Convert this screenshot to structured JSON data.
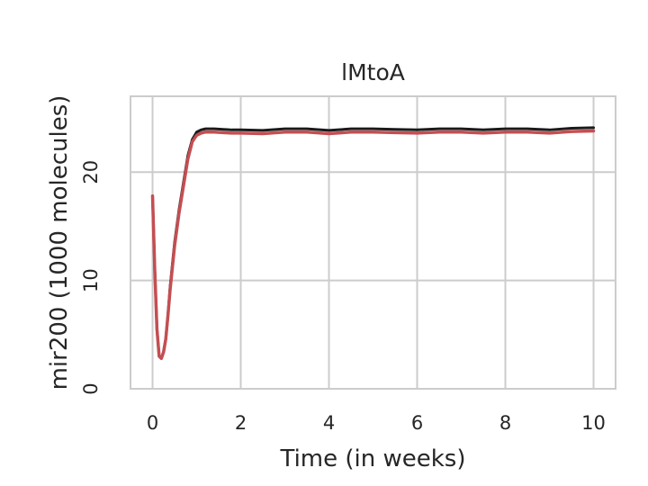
{
  "chart_data": {
    "type": "line",
    "title": "lMtoA",
    "xlabel": "Time (in weeks)",
    "ylabel": "mir200 (1000 molecules)",
    "xlim": [
      -0.5,
      10.5
    ],
    "ylim": [
      0,
      27
    ],
    "xticks": [
      0,
      2,
      4,
      6,
      8,
      10
    ],
    "yticks": [
      0,
      10,
      20
    ],
    "grid": true,
    "legend": "none",
    "series": [
      {
        "color": "#1a1a1a",
        "x": [
          0,
          0.05,
          0.1,
          0.15,
          0.2,
          0.25,
          0.3,
          0.35,
          0.4,
          0.5,
          0.6,
          0.7,
          0.8,
          0.9,
          1.0,
          1.1,
          1.2,
          1.4,
          1.6,
          1.8,
          2.0,
          2.5,
          3.0,
          3.5,
          4.0,
          4.5,
          5.0,
          5.5,
          6.0,
          6.5,
          7.0,
          7.5,
          8.0,
          8.5,
          9.0,
          9.5,
          10.0
        ],
        "y": [
          17.8,
          11.0,
          5.5,
          3.0,
          2.8,
          3.4,
          4.6,
          6.8,
          9.5,
          13.5,
          16.5,
          19.0,
          21.5,
          23.0,
          23.7,
          23.9,
          24.0,
          24.0,
          23.95,
          23.9,
          23.9,
          23.85,
          24.0,
          24.0,
          23.85,
          24.0,
          24.0,
          23.95,
          23.9,
          24.0,
          24.0,
          23.9,
          24.0,
          24.0,
          23.9,
          24.05,
          24.1
        ]
      },
      {
        "color": "#c44e52",
        "x": [
          0,
          0.05,
          0.1,
          0.15,
          0.2,
          0.25,
          0.3,
          0.35,
          0.4,
          0.5,
          0.6,
          0.7,
          0.8,
          0.9,
          1.0,
          1.1,
          1.2,
          1.4,
          1.6,
          1.8,
          2.0,
          2.5,
          3.0,
          3.5,
          4.0,
          4.5,
          5.0,
          5.5,
          6.0,
          6.5,
          7.0,
          7.5,
          8.0,
          8.5,
          9.0,
          9.5,
          10.0
        ],
        "y": [
          17.8,
          11.0,
          5.5,
          3.0,
          2.8,
          3.4,
          4.6,
          6.8,
          9.2,
          13.2,
          16.2,
          18.7,
          21.2,
          22.8,
          23.4,
          23.6,
          23.7,
          23.7,
          23.65,
          23.6,
          23.6,
          23.55,
          23.7,
          23.7,
          23.55,
          23.7,
          23.7,
          23.65,
          23.6,
          23.7,
          23.7,
          23.6,
          23.7,
          23.7,
          23.6,
          23.75,
          23.8
        ]
      }
    ]
  }
}
